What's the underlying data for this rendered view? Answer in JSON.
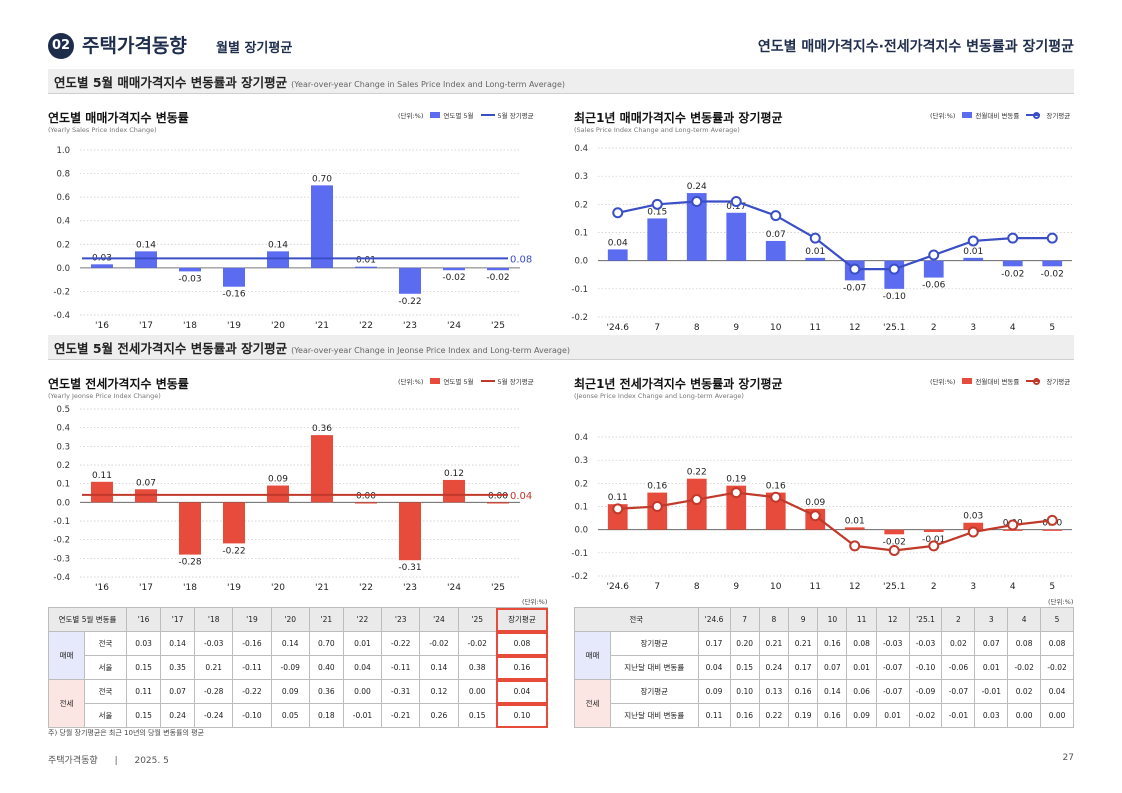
{
  "header": {
    "badge": "02",
    "title": "주택가격동향",
    "subtitle": "월별 장기평균",
    "right_title": "연도별 매매가격지수·전세가격지수 변동률과 장기평균"
  },
  "section1": {
    "title": "연도별 5월 매매가격지수 변동률과 장기평균",
    "sub": "(Year-over-year Change in Sales Price Index and Long-term Average)"
  },
  "section2": {
    "title": "연도별 5월 전세가격지수 변동률과 장기평균",
    "sub": "(Year-over-year Change in Jeonse Price Index and Long-term Average)"
  },
  "colors": {
    "blue": "#5b6cf0",
    "blue_line": "#3a4ec6",
    "red": "#e64b3c",
    "red_line": "#c0392b",
    "grid": "#c8c8c8"
  },
  "chart_data": [
    {
      "type": "bar",
      "title": "연도별 매매가격지수 변동률",
      "subtitle": "(Yearly Sales Price Index Change)",
      "unit": "(단위:%)",
      "categories": [
        "'16",
        "'17",
        "'18",
        "'19",
        "'20",
        "'21",
        "'22",
        "'23",
        "'24",
        "'25"
      ],
      "series": [
        {
          "name": "연도별 5월",
          "values": [
            0.03,
            0.14,
            -0.03,
            -0.16,
            0.14,
            0.7,
            0.01,
            -0.22,
            -0.02,
            -0.02
          ]
        },
        {
          "name": "5월 장기평균",
          "value": 0.08
        }
      ],
      "labels": [
        "0.03",
        "0.14",
        "-0.03",
        "-0.16",
        "0.14",
        "0.70",
        "0.01",
        "-0.22",
        "-0.02",
        "-0.02"
      ],
      "avg_label": "0.08",
      "yticks": [
        "1.0",
        "0.8",
        "0.6",
        "0.4",
        "0.2",
        "0.0",
        "-0.2",
        "-0.4"
      ],
      "ylim": [
        -0.4,
        1.0
      ],
      "grid": true,
      "theme": "blue"
    },
    {
      "type": "bar+line",
      "title": "최근1년 매매가격지수 변동률과 장기평균",
      "subtitle": "(Sales Price Index Change and Long-term Average)",
      "unit": "(단위:%)",
      "categories": [
        "'24.6",
        "7",
        "8",
        "9",
        "10",
        "11",
        "12",
        "'25.1",
        "2",
        "3",
        "4",
        "5"
      ],
      "series": [
        {
          "name": "전월대비 변동률",
          "values": [
            0.04,
            0.15,
            0.24,
            0.17,
            0.07,
            0.01,
            -0.07,
            -0.1,
            -0.06,
            0.01,
            -0.02,
            -0.02
          ]
        },
        {
          "name": "장기평균",
          "values": [
            0.17,
            0.2,
            0.21,
            0.21,
            0.16,
            0.08,
            -0.03,
            -0.03,
            0.02,
            0.07,
            0.08,
            0.08
          ]
        }
      ],
      "labels": [
        "0.04",
        "0.15",
        "0.24",
        "0.17",
        "0.07",
        "0.01",
        "-0.07",
        "-0.10",
        "-0.06",
        "0.01",
        "-0.02",
        "-0.02"
      ],
      "yticks": [
        "0.4",
        "0.3",
        "0.2",
        "0.1",
        "0.0",
        "-0.1",
        "-0.2"
      ],
      "ylim": [
        -0.2,
        0.4
      ],
      "grid": true,
      "theme": "blue"
    },
    {
      "type": "bar",
      "title": "연도별 전세가격지수 변동률",
      "subtitle": "(Yearly Jeonse Price Index Change)",
      "unit": "(단위:%)",
      "categories": [
        "'16",
        "'17",
        "'18",
        "'19",
        "'20",
        "'21",
        "'22",
        "'23",
        "'24",
        "'25"
      ],
      "series": [
        {
          "name": "연도별 5월",
          "values": [
            0.11,
            0.07,
            -0.28,
            -0.22,
            0.09,
            0.36,
            0.0,
            -0.31,
            0.12,
            0.0
          ]
        },
        {
          "name": "5월 장기평균",
          "value": 0.04
        }
      ],
      "labels": [
        "0.11",
        "0.07",
        "-0.28",
        "-0.22",
        "0.09",
        "0.36",
        "0.00",
        "-0.31",
        "0.12",
        "0.00"
      ],
      "avg_label": "0.04",
      "yticks": [
        "0.5",
        "0.4",
        "0.3",
        "0.2",
        "0.1",
        "0.0",
        "-0.1",
        "-0.2",
        "-0.3",
        "-0.4"
      ],
      "ylim": [
        -0.4,
        0.5
      ],
      "grid": true,
      "theme": "red"
    },
    {
      "type": "bar+line",
      "title": "최근1년 전세가격지수 변동률과 장기평균",
      "subtitle": "(Jeonse Price Index Change and Long-term Average)",
      "unit": "(단위:%)",
      "categories": [
        "'24.6",
        "7",
        "8",
        "9",
        "10",
        "11",
        "12",
        "'25.1",
        "2",
        "3",
        "4",
        "5"
      ],
      "series": [
        {
          "name": "전월대비 변동률",
          "values": [
            0.11,
            0.16,
            0.22,
            0.19,
            0.16,
            0.09,
            0.01,
            -0.02,
            -0.01,
            0.03,
            0.0,
            0.0
          ]
        },
        {
          "name": "장기평균",
          "values": [
            0.09,
            0.1,
            0.13,
            0.16,
            0.14,
            0.06,
            -0.07,
            -0.09,
            -0.07,
            -0.01,
            0.02,
            0.04
          ]
        }
      ],
      "labels": [
        "0.11",
        "0.16",
        "0.22",
        "0.19",
        "0.16",
        "0.09",
        "0.01",
        "-0.02",
        "-0.01",
        "0.03",
        "0.00",
        "0.00"
      ],
      "yticks": [
        "0.4",
        "0.3",
        "0.2",
        "0.1",
        "0.0",
        "-0.1",
        "-0.2"
      ],
      "ylim": [
        -0.2,
        0.4
      ],
      "grid": true,
      "theme": "red"
    }
  ],
  "table_left": {
    "unit": "(단위:%)",
    "headers": [
      "연도별 5월 변동률",
      "'16",
      "'17",
      "'18",
      "'19",
      "'20",
      "'21",
      "'22",
      "'23",
      "'24",
      "'25",
      "장기평균"
    ],
    "groups": [
      {
        "name": "매매",
        "rows": [
          {
            "label": "전국",
            "values": [
              "0.03",
              "0.14",
              "-0.03",
              "-0.16",
              "0.14",
              "0.70",
              "0.01",
              "-0.22",
              "-0.02",
              "-0.02",
              "0.08"
            ]
          },
          {
            "label": "서울",
            "values": [
              "0.15",
              "0.35",
              "0.21",
              "-0.11",
              "-0.09",
              "0.40",
              "0.04",
              "-0.11",
              "0.14",
              "0.38",
              "0.16"
            ]
          }
        ]
      },
      {
        "name": "전세",
        "rows": [
          {
            "label": "전국",
            "values": [
              "0.11",
              "0.07",
              "-0.28",
              "-0.22",
              "0.09",
              "0.36",
              "0.00",
              "-0.31",
              "0.12",
              "0.00",
              "0.04"
            ]
          },
          {
            "label": "서울",
            "values": [
              "0.15",
              "0.24",
              "-0.24",
              "-0.10",
              "0.05",
              "0.18",
              "-0.01",
              "-0.21",
              "0.26",
              "0.15",
              "0.10"
            ]
          }
        ]
      }
    ],
    "note": "주) 당월 장기평균은 최근 10년의 당월 변동률의 평균"
  },
  "table_right": {
    "unit": "(단위:%)",
    "headers": [
      "전국",
      "'24.6",
      "7",
      "8",
      "9",
      "10",
      "11",
      "12",
      "'25.1",
      "2",
      "3",
      "4",
      "5"
    ],
    "groups": [
      {
        "name": "매매",
        "rows": [
          {
            "label": "장기평균",
            "values": [
              "0.17",
              "0.20",
              "0.21",
              "0.21",
              "0.16",
              "0.08",
              "-0.03",
              "-0.03",
              "0.02",
              "0.07",
              "0.08",
              "0.08"
            ]
          },
          {
            "label": "지난달 대비 변동률",
            "values": [
              "0.04",
              "0.15",
              "0.24",
              "0.17",
              "0.07",
              "0.01",
              "-0.07",
              "-0.10",
              "-0.06",
              "0.01",
              "-0.02",
              "-0.02"
            ]
          }
        ]
      },
      {
        "name": "전세",
        "rows": [
          {
            "label": "장기평균",
            "values": [
              "0.09",
              "0.10",
              "0.13",
              "0.16",
              "0.14",
              "0.06",
              "-0.07",
              "-0.09",
              "-0.07",
              "-0.01",
              "0.02",
              "0.04"
            ]
          },
          {
            "label": "지난달 대비 변동률",
            "values": [
              "0.11",
              "0.16",
              "0.22",
              "0.19",
              "0.16",
              "0.09",
              "0.01",
              "-0.02",
              "-0.01",
              "0.03",
              "0.00",
              "0.00"
            ]
          }
        ]
      }
    ]
  },
  "footer": {
    "left": "주택가격동향",
    "divider": "|",
    "date": "2025. 5",
    "page": "27"
  }
}
